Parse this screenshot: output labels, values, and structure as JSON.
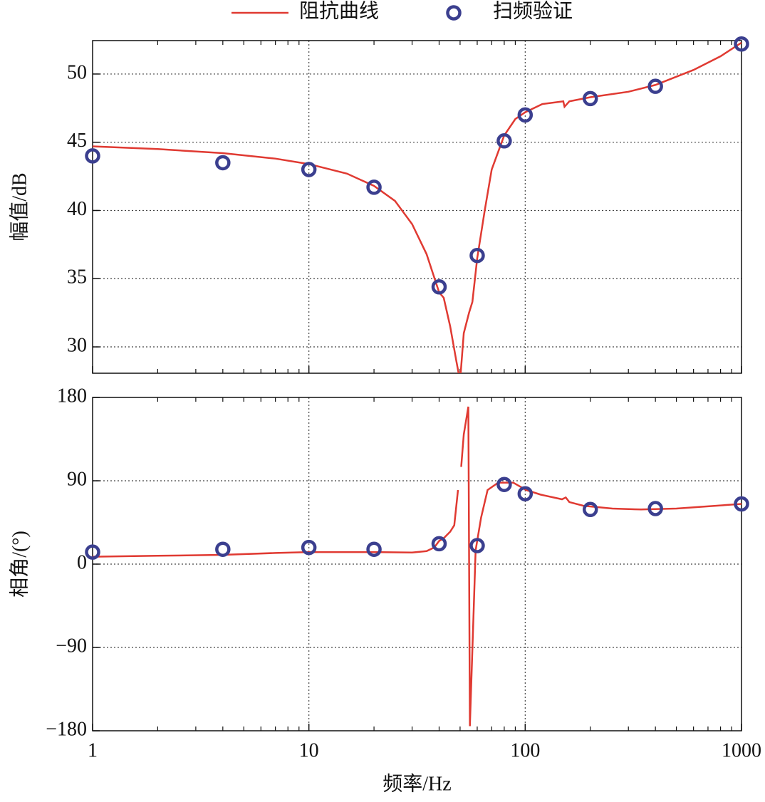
{
  "chart_data": [
    {
      "type": "line",
      "ylabel": "幅值/dB",
      "log_x": true,
      "grid": true,
      "legend_position": "top",
      "xlim": [
        1,
        1000
      ],
      "ylim": [
        28.07,
        52.45
      ],
      "yticks": [
        30,
        35,
        40,
        45,
        50
      ],
      "series": [
        {
          "name": "阻抗曲线",
          "color": "#e03a32",
          "style": "line",
          "x": [
            1,
            2,
            4,
            7,
            10,
            15,
            20,
            25,
            30,
            35,
            40,
            42,
            45,
            48,
            50,
            52,
            55,
            57,
            60,
            65,
            70,
            80,
            90,
            100,
            120,
            150,
            152,
            160,
            200,
            300,
            400,
            600,
            800,
            1000
          ],
          "values": [
            44.7,
            44.5,
            44.2,
            43.8,
            43.4,
            42.7,
            41.8,
            40.7,
            39.0,
            36.8,
            34.0,
            33.6,
            31.5,
            29.0,
            27.5,
            31.0,
            32.5,
            33.3,
            36.5,
            40.0,
            43.0,
            45.5,
            46.7,
            47.2,
            47.8,
            48.0,
            47.6,
            48.0,
            48.3,
            48.7,
            49.2,
            50.3,
            51.3,
            52.3
          ]
        },
        {
          "name": "扫频验证",
          "color": "#3b3f8f",
          "style": "marker",
          "x": [
            1,
            4,
            10,
            20,
            40,
            60,
            80,
            100,
            200,
            400,
            1000
          ],
          "values": [
            44.0,
            43.5,
            43.0,
            41.7,
            34.4,
            36.7,
            45.1,
            47.0,
            48.2,
            49.1,
            52.2
          ]
        }
      ]
    },
    {
      "type": "line",
      "ylabel": "相角/(°)",
      "xlabel": "频率/Hz",
      "log_x": true,
      "grid": true,
      "xlim": [
        1,
        1000
      ],
      "xticks": [
        1,
        10,
        100,
        1000
      ],
      "ylim": [
        -180,
        180
      ],
      "yticks": [
        {
          "value": -180,
          "label": "−180"
        },
        {
          "value": -90,
          "label": "−90"
        },
        0,
        90,
        180
      ],
      "series": [
        {
          "color": "#e03a32",
          "style": "line",
          "x": [
            1,
            2,
            4,
            7,
            10,
            20,
            30,
            35,
            38,
            40,
            42,
            45,
            47,
            48.9,
            49.5,
            50.6,
            52,
            54.6,
            55.5,
            59,
            62.5,
            67,
            75,
            88,
            101,
            118,
            148,
            154,
            160,
            186,
            253,
            343,
            500,
            1000
          ],
          "values": [
            8,
            9,
            10,
            12,
            13,
            13,
            12.5,
            14,
            18,
            25,
            28,
            35,
            42,
            80,
            null,
            105,
            140,
            170,
            -175,
            15,
            50,
            80,
            88,
            88,
            80,
            75,
            70,
            72,
            67,
            63,
            60,
            59,
            60,
            65
          ]
        },
        {
          "color": "#3b3f8f",
          "style": "marker",
          "x": [
            1,
            4,
            10,
            20,
            40,
            60,
            80,
            100,
            200,
            400,
            1000
          ],
          "values": [
            13,
            16,
            18,
            16,
            22,
            20,
            86,
            76,
            59,
            60,
            65
          ]
        }
      ]
    }
  ]
}
